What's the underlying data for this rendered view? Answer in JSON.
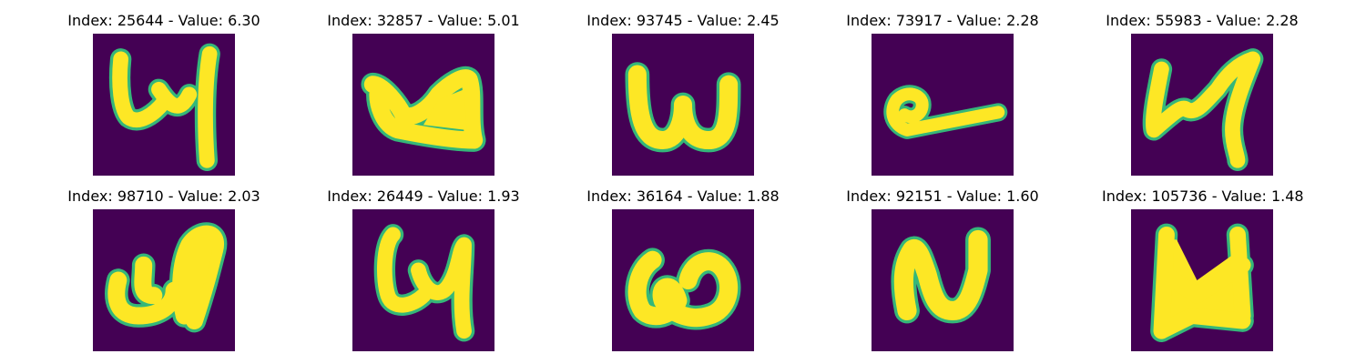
{
  "colors": {
    "background": "#440154",
    "stroke_core": "#fde725",
    "stroke_edge": "#35b779"
  },
  "panels": [
    {
      "title": "Index: 25644 - Value: 6.30",
      "glyph": "4-open"
    },
    {
      "title": "Index: 32857 - Value: 5.01",
      "glyph": "u-blob"
    },
    {
      "title": "Index: 93745 - Value: 2.45",
      "glyph": "w"
    },
    {
      "title": "Index: 73917 - Value: 2.28",
      "glyph": "loop-dash"
    },
    {
      "title": "Index: 55983 - Value: 2.28",
      "glyph": "4-slanted"
    },
    {
      "title": "Index: 98710 - Value: 2.03",
      "glyph": "u-bulb"
    },
    {
      "title": "Index: 26449 - Value: 1.93",
      "glyph": "4-curly"
    },
    {
      "title": "Index: 36164 - Value: 1.88",
      "glyph": "omega"
    },
    {
      "title": "Index: 92151 - Value: 1.60",
      "glyph": "n-inverted"
    },
    {
      "title": "Index: 105736 - Value: 1.48",
      "glyph": "bowtie"
    }
  ]
}
